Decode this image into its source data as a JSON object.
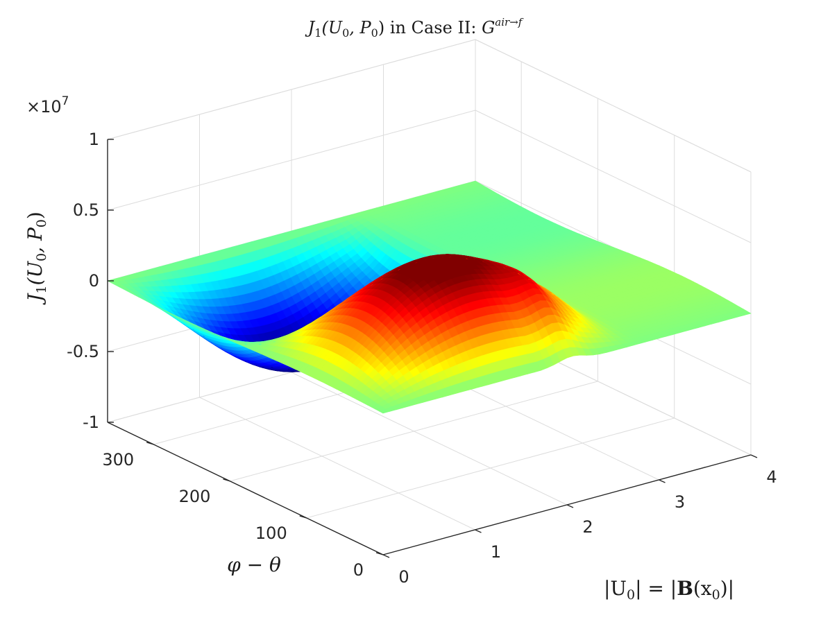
{
  "chart_data": {
    "type": "surface",
    "title": {
      "func": "J",
      "func_sub": "1",
      "args_open": "(U",
      "u_sub": "0",
      "args_mid": ", P",
      "p_sub": "0",
      "args_close": ")",
      "text": " in Case II: ",
      "g": "G",
      "g_sup": "air→f"
    },
    "xlabel": {
      "pre": "|U",
      "sub": "0",
      "mid": "| = |",
      "bold": "B",
      "post_open": "(x",
      "sub2": "0",
      "post_close": ")|"
    },
    "ylabel": {
      "text": "φ − θ"
    },
    "zlabel": {
      "func": "J",
      "func_sub": "1",
      "args_open": "(U",
      "u_sub": "0",
      "args_mid": ", P",
      "p_sub": "0",
      "args_close": ")"
    },
    "z_multiplier": {
      "base": "×10",
      "exp": "7"
    },
    "xlim": [
      0,
      4
    ],
    "ylim": [
      0,
      360
    ],
    "zlim": [
      -1,
      1
    ],
    "z_scale": 10000000,
    "x_ticks": [
      "0",
      "1",
      "2",
      "3",
      "4"
    ],
    "y_ticks": [
      "0",
      "100",
      "200",
      "300"
    ],
    "z_ticks": [
      "-1",
      "-0.5",
      "0",
      "0.5",
      "1"
    ],
    "colormap": "jet",
    "grid": true,
    "surface_samples": {
      "x": [
        0,
        0.5,
        1.0,
        1.5,
        2.0,
        2.5,
        3.0,
        3.5,
        4.0
      ],
      "phi_minus_theta": [
        0,
        90,
        180,
        270,
        360
      ],
      "z_at_0": [
        0,
        0,
        0,
        0,
        0,
        0,
        0,
        0,
        0
      ],
      "z_at_90": [
        0,
        0.39,
        0.55,
        0.53,
        0.34,
        0.1,
        0.03,
        0.03,
        0.03
      ],
      "z_at_180": [
        0,
        0,
        0,
        0,
        0,
        0,
        0,
        0,
        0
      ],
      "z_at_270": [
        0,
        -0.39,
        -0.55,
        -0.53,
        -0.34,
        -0.1,
        -0.03,
        -0.03,
        -0.03
      ]
    }
  }
}
